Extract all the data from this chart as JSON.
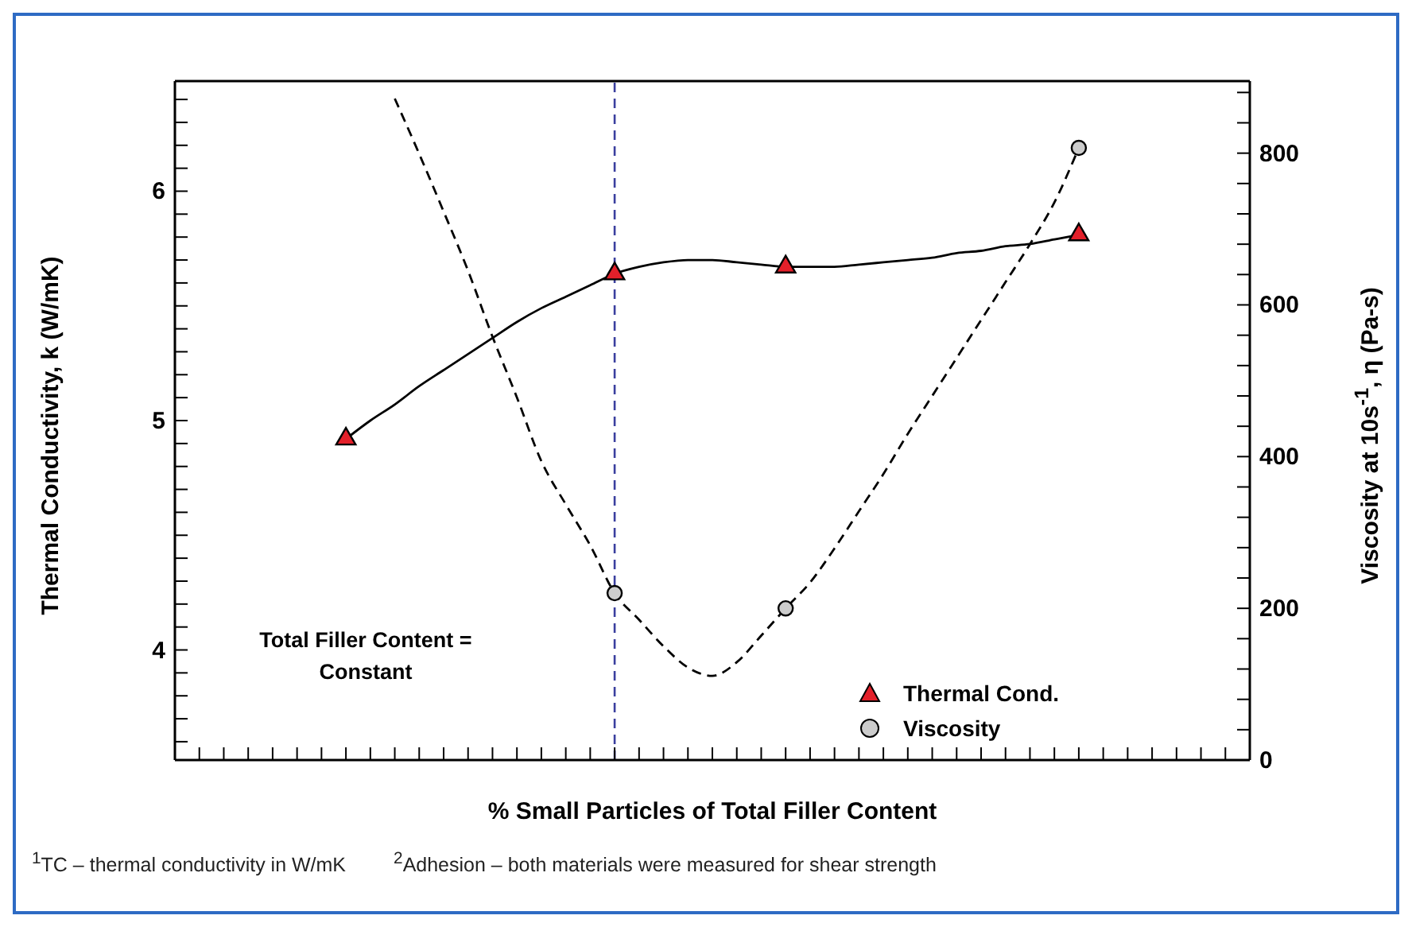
{
  "chart_data": {
    "type": "scatter",
    "xlabel": "% Small Particles of Total Filler Content",
    "ylabel": "Thermal Conductivity, k (W/mK)",
    "y2label": "Viscosity at 10s$^{-1}$, η (Pa-s)",
    "categories": [
      null,
      null,
      null,
      null,
      null,
      null,
      null,
      null,
      null,
      null,
      null,
      null,
      null,
      null,
      null,
      null,
      null,
      null,
      null,
      null,
      null,
      null,
      null,
      null,
      null,
      null,
      null,
      null,
      null,
      null,
      null,
      null,
      null,
      null,
      null,
      null,
      null,
      null,
      null,
      null,
      null,
      null,
      null,
      null,
      null
    ],
    "series": [
      {
        "name": "Thermal Cond.",
        "color": "#e3202a",
        "marker": "triangle",
        "axis": "y",
        "values": [
          null,
          null,
          null,
          null,
          null,
          null,
          null,
          4.92,
          null,
          null,
          null,
          null,
          null,
          null,
          null,
          null,
          null,
          null,
          5.64,
          null,
          null,
          null,
          null,
          null,
          null,
          5.67,
          null,
          null,
          null,
          null,
          null,
          null,
          null,
          null,
          null,
          null,
          null,
          5.81,
          null,
          null,
          null,
          null,
          null,
          null,
          null
        ]
      },
      {
        "name": "Viscosity",
        "color": "#cccccc",
        "marker": "circle",
        "axis": "y2",
        "values": [
          null,
          null,
          null,
          null,
          null,
          null,
          null,
          null,
          null,
          null,
          null,
          null,
          null,
          null,
          null,
          null,
          null,
          null,
          220,
          null,
          null,
          null,
          null,
          null,
          null,
          200,
          null,
          null,
          null,
          null,
          null,
          null,
          null,
          null,
          null,
          null,
          null,
          807,
          null,
          null,
          null,
          null,
          null,
          null,
          null
        ]
      },
      {
        "type": "line",
        "color": "#000000",
        "line_style": "solid",
        "axis": "y",
        "values": [
          null,
          null,
          null,
          null,
          null,
          null,
          null,
          4.92,
          5.0,
          5.07,
          5.15,
          5.22,
          5.29,
          5.36,
          5.43,
          5.49,
          5.54,
          5.59,
          5.64,
          5.67,
          5.69,
          5.7,
          5.7,
          5.69,
          5.68,
          5.67,
          5.67,
          5.67,
          5.68,
          5.69,
          5.7,
          5.71,
          5.73,
          5.74,
          5.76,
          5.77,
          5.79,
          5.81,
          null,
          null,
          null,
          null,
          null,
          null,
          null
        ]
      },
      {
        "type": "line",
        "color": "#000000",
        "line_style": "dashed",
        "axis": "y2",
        "values": [
          null,
          null,
          null,
          null,
          null,
          null,
          null,
          null,
          null,
          872,
          799,
          723,
          645,
          558,
          478,
          394,
          337,
          283,
          220,
          185,
          150,
          122,
          111,
          129,
          164,
          200,
          234,
          279,
          328,
          377,
          430,
          480,
          530,
          580,
          630,
          680,
          735,
          807,
          null,
          null,
          null,
          null,
          null,
          null,
          null
        ]
      }
    ],
    "ylim": [
      3.52,
      6.48
    ],
    "yticks": [
      {
        "value": 3.6,
        "label": null
      },
      {
        "value": 3.7,
        "label": null
      },
      {
        "value": 3.8,
        "label": null
      },
      {
        "value": 3.9,
        "label": null
      },
      4,
      {
        "value": 4.1,
        "label": null
      },
      {
        "value": 4.2,
        "label": null
      },
      {
        "value": 4.3,
        "label": null
      },
      {
        "value": 4.4,
        "label": null
      },
      {
        "value": 4.5,
        "label": null
      },
      {
        "value": 4.6,
        "label": null
      },
      {
        "value": 4.7,
        "label": null
      },
      {
        "value": 4.8,
        "label": null
      },
      {
        "value": 4.9,
        "label": null
      },
      5,
      {
        "value": 5.1,
        "label": null
      },
      {
        "value": 5.2,
        "label": null
      },
      {
        "value": 5.3,
        "label": null
      },
      {
        "value": 5.4,
        "label": null
      },
      {
        "value": 5.5,
        "label": null
      },
      {
        "value": 5.6,
        "label": null
      },
      {
        "value": 5.7,
        "label": null
      },
      {
        "value": 5.8,
        "label": null
      },
      {
        "value": 5.9,
        "label": null
      },
      6,
      {
        "value": 6.1,
        "label": null
      },
      {
        "value": 6.2,
        "label": null
      },
      {
        "value": 6.3,
        "label": null
      },
      {
        "value": 6.4,
        "label": null
      }
    ],
    "y2lim": [
      0,
      895
    ],
    "y2ticks": [
      0,
      {
        "value": 40,
        "label": null
      },
      {
        "value": 80,
        "label": null
      },
      {
        "value": 120,
        "label": null
      },
      {
        "value": 160,
        "label": null
      },
      200,
      {
        "value": 240,
        "label": null
      },
      {
        "value": 280,
        "label": null
      },
      {
        "value": 320,
        "label": null
      },
      {
        "value": 360,
        "label": null
      },
      400,
      {
        "value": 440,
        "label": null
      },
      {
        "value": 480,
        "label": null
      },
      {
        "value": 520,
        "label": null
      },
      {
        "value": 560,
        "label": null
      },
      600,
      {
        "value": 640,
        "label": null
      },
      {
        "value": 680,
        "label": null
      },
      {
        "value": 720,
        "label": null
      },
      {
        "value": 760,
        "label": null
      },
      800,
      {
        "value": 840,
        "label": null
      },
      {
        "value": 880,
        "label": null
      }
    ],
    "legend": "bottom right",
    "grid": false,
    "annotations": [
      "Total Filler Content = Constant",
      "$^{1}$TC – thermal conductivity in W/mK",
      "$^{2}$Adhesion – both materials were measured for shear strength"
    ]
  }
}
